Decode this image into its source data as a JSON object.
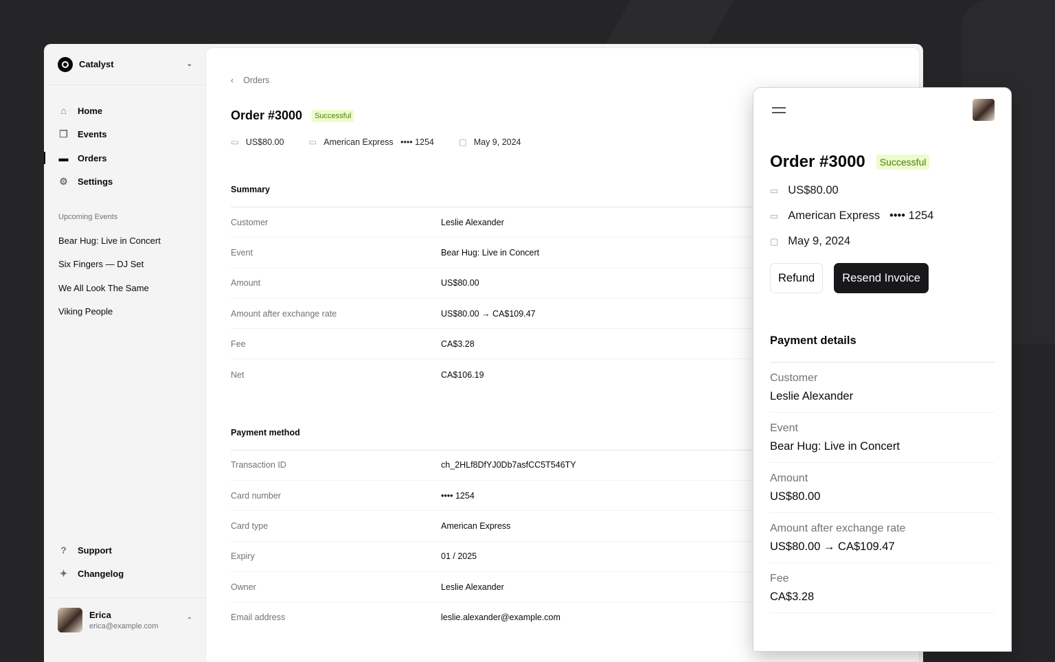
{
  "team": "Catalyst",
  "nav": [
    {
      "label": "Home",
      "icon": "home-icon",
      "g": "⌂"
    },
    {
      "label": "Events",
      "icon": "events-icon",
      "g": "❐"
    },
    {
      "label": "Orders",
      "icon": "ticket-icon",
      "g": "▬",
      "active": true
    },
    {
      "label": "Settings",
      "icon": "gear-icon",
      "g": "⚙"
    }
  ],
  "upcoming_title": "Upcoming Events",
  "events": [
    "Bear Hug: Live in Concert",
    "Six Fingers — DJ Set",
    "We All Look The Same",
    "Viking People"
  ],
  "bottom_nav": [
    {
      "label": "Support",
      "icon": "help-icon",
      "g": "?"
    },
    {
      "label": "Changelog",
      "icon": "sparkles-icon",
      "g": "✦"
    }
  ],
  "user": {
    "name": "Erica",
    "email": "erica@example.com"
  },
  "breadcrumb": "Orders",
  "order": {
    "title": "Order #3000",
    "status": "Successful",
    "amount": "US$80.00",
    "card_type": "American Express",
    "card_last4": "•••• 1254",
    "date": "May 9, 2024"
  },
  "summary": {
    "title": "Summary",
    "rows": [
      [
        "Customer",
        "Leslie Alexander"
      ],
      [
        "Event",
        "Bear Hug: Live in Concert"
      ],
      [
        "Amount",
        "US$80.00"
      ],
      [
        "Amount after exchange rate",
        "US$80.00 → CA$109.47"
      ],
      [
        "Fee",
        "CA$3.28"
      ],
      [
        "Net",
        "CA$106.19"
      ]
    ]
  },
  "payment_method": {
    "title": "Payment method",
    "rows": [
      [
        "Transaction ID",
        "ch_2HLf8DfYJ0Db7asfCC5T546TY"
      ],
      [
        "Card number",
        "•••• 1254"
      ],
      [
        "Card type",
        "American Express"
      ],
      [
        "Expiry",
        "01 / 2025"
      ],
      [
        "Owner",
        "Leslie Alexander"
      ],
      [
        "Email address",
        "leslie.alexander@example.com"
      ]
    ]
  },
  "mobile": {
    "refund": "Refund",
    "resend": "Resend Invoice",
    "details_title": "Payment details",
    "rows": [
      [
        "Customer",
        "Leslie Alexander"
      ],
      [
        "Event",
        "Bear Hug: Live in Concert"
      ],
      [
        "Amount",
        "US$80.00"
      ],
      [
        "Amount after exchange rate",
        "US$80.00 → CA$109.47"
      ],
      [
        "Fee",
        "CA$3.28"
      ]
    ]
  },
  "colors": {
    "background": "#252528",
    "badge_bg": "#ecfccb",
    "badge_text": "#4d7c0f",
    "primary_button": "#18181b"
  }
}
